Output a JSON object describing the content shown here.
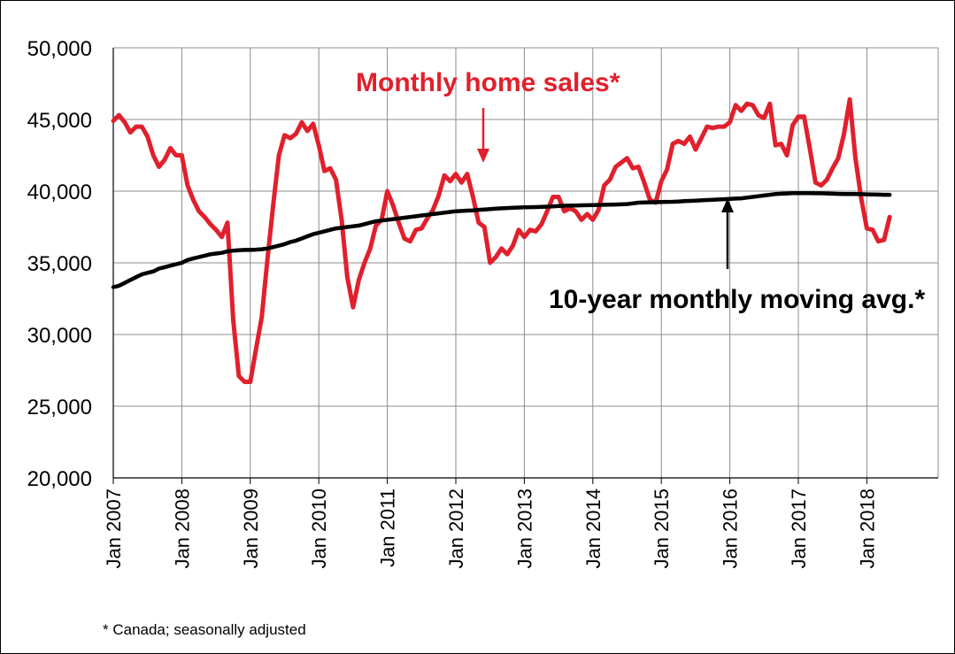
{
  "chart_data": {
    "type": "line",
    "title": "",
    "xlabel": "",
    "ylabel": "",
    "ylim": [
      20000,
      50000
    ],
    "yticks": [
      "20,000",
      "25,000",
      "30,000",
      "35,000",
      "40,000",
      "45,000",
      "50,000"
    ],
    "ytick_values": [
      20000,
      25000,
      30000,
      35000,
      40000,
      45000,
      50000
    ],
    "xticks": [
      "Jan 2007",
      "Jan 2008",
      "Jan 2009",
      "Jan 2010",
      "Jan 2011",
      "Jan 2012",
      "Jan 2013",
      "Jan 2014",
      "Jan 2015",
      "Jan 2016",
      "Jan 2017",
      "Jan 2018"
    ],
    "x_start": "Jan 2007",
    "x_end": "Jul 2018",
    "grid": true,
    "colors": {
      "sales": "#e0202c",
      "avg": "#000000"
    },
    "series": [
      {
        "name": "Monthly home sales*",
        "values": [
          44900,
          45300,
          44800,
          44100,
          44500,
          44500,
          43800,
          42500,
          41700,
          42200,
          43000,
          42500,
          42500,
          40400,
          39400,
          38600,
          38200,
          37700,
          37300,
          36800,
          37800,
          31000,
          27100,
          26700,
          26700,
          29000,
          31200,
          35200,
          39000,
          42500,
          43900,
          43700,
          44000,
          44800,
          44200,
          44700,
          43200,
          41400,
          41600,
          40800,
          38000,
          34000,
          31900,
          33800,
          35000,
          36000,
          37600,
          38000,
          40000,
          39000,
          37800,
          36700,
          36500,
          37300,
          37400,
          38100,
          38700,
          39700,
          41100,
          40700,
          41200,
          40600,
          41200,
          39600,
          37800,
          37500,
          35000,
          35400,
          36000,
          35600,
          36200,
          37300,
          36800,
          37300,
          37200,
          37700,
          38600,
          39600,
          39600,
          38600,
          38800,
          38600,
          38000,
          38400,
          38000,
          38700,
          40400,
          40800,
          41700,
          42000,
          42300,
          41600,
          41700,
          40600,
          39400,
          39200,
          40700,
          41500,
          43300,
          43500,
          43300,
          43800,
          42900,
          43700,
          44500,
          44400,
          44500,
          44500,
          44800,
          46000,
          45600,
          46100,
          46000,
          45300,
          45100,
          46100,
          43200,
          43300,
          42500,
          44600,
          45200,
          45200,
          43000,
          40600,
          40400,
          40800,
          41600,
          42300,
          44000,
          46400,
          42300,
          39500,
          37400,
          37300,
          36500,
          36600,
          38200
        ]
      },
      {
        "name": "10-year monthly moving avg.*",
        "values": [
          33300,
          33400,
          33600,
          33800,
          34000,
          34200,
          34300,
          34400,
          34600,
          34700,
          34800,
          34900,
          35000,
          35200,
          35300,
          35400,
          35500,
          35600,
          35650,
          35700,
          35800,
          35850,
          35880,
          35900,
          35900,
          35920,
          35950,
          36000,
          36100,
          36200,
          36300,
          36450,
          36550,
          36700,
          36850,
          37000,
          37100,
          37200,
          37300,
          37400,
          37450,
          37500,
          37550,
          37600,
          37700,
          37800,
          37900,
          37950,
          38000,
          38050,
          38100,
          38150,
          38200,
          38250,
          38300,
          38350,
          38400,
          38450,
          38500,
          38550,
          38600,
          38620,
          38640,
          38660,
          38700,
          38720,
          38750,
          38780,
          38800,
          38820,
          38840,
          38860,
          38870,
          38880,
          38890,
          38900,
          38920,
          38940,
          38960,
          38980,
          39000,
          39000,
          39010,
          39020,
          39030,
          39040,
          39050,
          39060,
          39070,
          39080,
          39100,
          39150,
          39200,
          39210,
          39220,
          39230,
          39240,
          39250,
          39260,
          39280,
          39300,
          39320,
          39340,
          39360,
          39380,
          39400,
          39420,
          39440,
          39460,
          39480,
          39500,
          39550,
          39600,
          39650,
          39700,
          39750,
          39800,
          39820,
          39840,
          39860,
          39860,
          39860,
          39860,
          39850,
          39850,
          39840,
          39820,
          39810,
          39800,
          39800,
          39800,
          39790,
          39780,
          39770,
          39760,
          39750,
          39750
        ]
      }
    ],
    "annotations": {
      "sales_label": "Monthly home sales*",
      "avg_label": "10-year monthly moving avg.*"
    }
  },
  "footnote": "* Canada; seasonally adjusted"
}
